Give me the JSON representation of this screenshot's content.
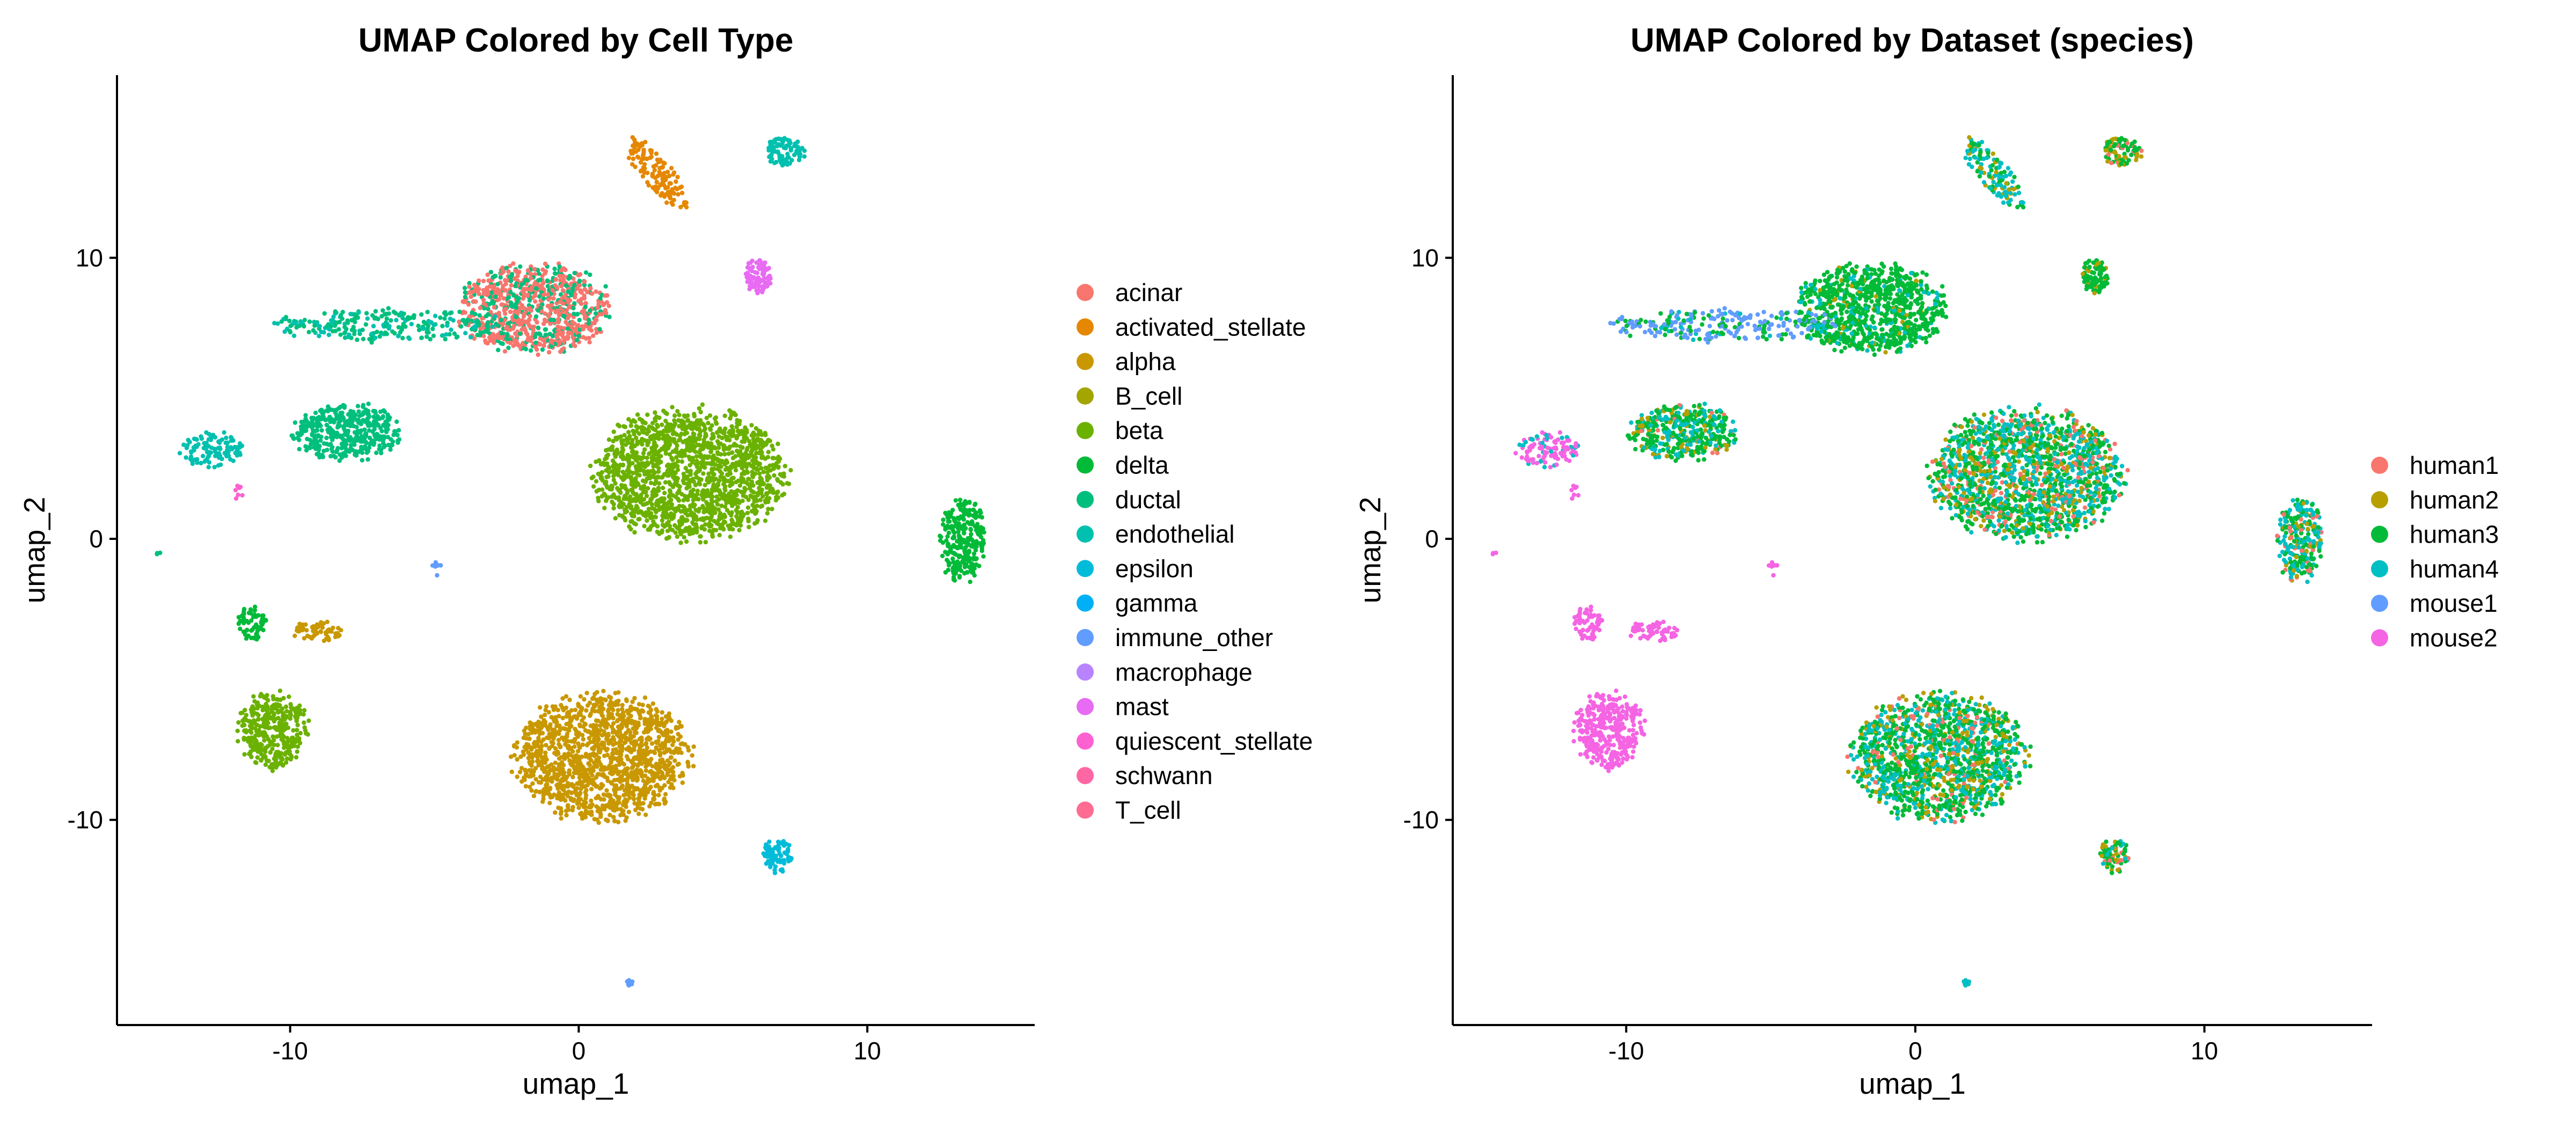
{
  "chart_data": [
    {
      "type": "scatter",
      "title": "UMAP Colored by Cell Type",
      "xlabel": "umap_1",
      "ylabel": "umap_2",
      "xlim": [
        -16.0,
        15.8
      ],
      "ylim": [
        -17.3,
        16.5
      ],
      "xticks": [
        -10,
        0,
        10
      ],
      "xtick_labels": [
        "-10",
        "0",
        "10"
      ],
      "yticks": [
        -10,
        0,
        10
      ],
      "ytick_labels": [
        "-10",
        "0",
        "10"
      ],
      "grid": false,
      "legend_position": "right",
      "legend": [
        {
          "name": "acinar",
          "color": "#F8766D"
        },
        {
          "name": "activated_stellate",
          "color": "#E58700"
        },
        {
          "name": "alpha",
          "color": "#C99800"
        },
        {
          "name": "B_cell",
          "color": "#A3A500"
        },
        {
          "name": "beta",
          "color": "#6BB100"
        },
        {
          "name": "delta",
          "color": "#00BA38"
        },
        {
          "name": "ductal",
          "color": "#00BF7D"
        },
        {
          "name": "endothelial",
          "color": "#00C0AF"
        },
        {
          "name": "epsilon",
          "color": "#00BCD8"
        },
        {
          "name": "gamma",
          "color": "#00B0F6"
        },
        {
          "name": "immune_other",
          "color": "#619CFF"
        },
        {
          "name": "macrophage",
          "color": "#B983FF"
        },
        {
          "name": "mast",
          "color": "#E76BF3"
        },
        {
          "name": "quiescent_stellate",
          "color": "#FD61D1"
        },
        {
          "name": "schwann",
          "color": "#FF67A4"
        },
        {
          "name": "T_cell",
          "color": "#FF6C91"
        }
      ],
      "clusters": [
        {
          "label": "acinar",
          "center": [
            -1.5,
            8.2
          ],
          "radius": [
            2.6,
            1.6
          ],
          "n": 900,
          "color": "#F8766D",
          "mix": [
            [
              "#00BF7D",
              0.3
            ]
          ]
        },
        {
          "label": "ductal",
          "center": [
            -8.0,
            3.8
          ],
          "radius": [
            1.9,
            1.0
          ],
          "n": 420,
          "color": "#00BF7D"
        },
        {
          "label": "ductal",
          "center": [
            -6.5,
            7.6
          ],
          "radius": [
            4.0,
            0.6
          ],
          "n": 260,
          "color": "#00BF7D",
          "mix": [
            [
              "#00C0AF",
              0.3
            ]
          ]
        },
        {
          "label": "endothelial",
          "center": [
            -12.7,
            3.2
          ],
          "radius": [
            1.1,
            0.6
          ],
          "n": 110,
          "color": "#00C0AF"
        },
        {
          "label": "endothelial",
          "center": [
            7.1,
            13.8
          ],
          "radius": [
            0.7,
            0.5
          ],
          "n": 90,
          "color": "#00C0AF"
        },
        {
          "label": "activated_stellate",
          "center": [
            2.7,
            13.0
          ],
          "radius": [
            1.6,
            0.5
          ],
          "n": 130,
          "color": "#E58700",
          "rotate": -52
        },
        {
          "label": "quiescent_stellate",
          "center": [
            6.2,
            9.4
          ],
          "radius": [
            0.45,
            0.65
          ],
          "n": 90,
          "color": "#E76BF3"
        },
        {
          "label": "beta",
          "center": [
            3.8,
            2.3
          ],
          "radius": [
            3.3,
            2.3
          ],
          "n": 1600,
          "color": "#6BB100"
        },
        {
          "label": "beta",
          "center": [
            -10.6,
            -6.8
          ],
          "radius": [
            1.2,
            1.4
          ],
          "n": 350,
          "color": "#6BB100"
        },
        {
          "label": "delta",
          "center": [
            13.3,
            0.0
          ],
          "radius": [
            0.8,
            1.5
          ],
          "n": 260,
          "color": "#00BA38"
        },
        {
          "label": "delta",
          "center": [
            -11.3,
            -3.0
          ],
          "radius": [
            0.5,
            0.6
          ],
          "n": 60,
          "color": "#00BA38"
        },
        {
          "label": "alpha",
          "center": [
            0.8,
            -7.8
          ],
          "radius": [
            3.0,
            2.2
          ],
          "n": 1400,
          "color": "#C99800"
        },
        {
          "label": "alpha",
          "center": [
            -9.0,
            -3.3
          ],
          "radius": [
            0.9,
            0.35
          ],
          "n": 60,
          "color": "#C99800"
        },
        {
          "label": "gamma",
          "center": [
            6.9,
            -11.3
          ],
          "radius": [
            0.55,
            0.6
          ],
          "n": 80,
          "color": "#00BCD8"
        },
        {
          "label": "macrophage",
          "center": [
            1.8,
            -15.8
          ],
          "radius": [
            0.15,
            0.15
          ],
          "n": 8,
          "color": "#619CFF"
        },
        {
          "label": "macrophage",
          "center": [
            -4.9,
            -1.1
          ],
          "radius": [
            0.2,
            0.3
          ],
          "n": 8,
          "color": "#619CFF"
        },
        {
          "label": "schwann",
          "center": [
            -11.8,
            1.6
          ],
          "radius": [
            0.15,
            0.3
          ],
          "n": 8,
          "color": "#FD61D1"
        },
        {
          "label": "ductal",
          "center": [
            -14.6,
            -0.5
          ],
          "radius": [
            0.1,
            0.1
          ],
          "n": 3,
          "color": "#00BF7D"
        }
      ]
    },
    {
      "type": "scatter",
      "title": "UMAP Colored by Dataset (species)",
      "xlabel": "umap_1",
      "ylabel": "umap_2",
      "xlim": [
        -16.0,
        15.8
      ],
      "ylim": [
        -17.3,
        16.5
      ],
      "xticks": [
        -10,
        0,
        10
      ],
      "xtick_labels": [
        "-10",
        "0",
        "10"
      ],
      "yticks": [
        -10,
        0,
        10
      ],
      "ytick_labels": [
        "-10",
        "0",
        "10"
      ],
      "grid": false,
      "legend_position": "right",
      "legend": [
        {
          "name": "human1",
          "color": "#F8766D"
        },
        {
          "name": "human2",
          "color": "#B79F00"
        },
        {
          "name": "human3",
          "color": "#00BA38"
        },
        {
          "name": "human4",
          "color": "#00BFC4"
        },
        {
          "name": "mouse1",
          "color": "#619CFF"
        },
        {
          "name": "mouse2",
          "color": "#F564E3"
        }
      ],
      "clusters": [
        {
          "label": "mixed",
          "center": [
            -1.5,
            8.2
          ],
          "radius": [
            2.6,
            1.6
          ],
          "n": 900,
          "color": "#00BA38",
          "mix": [
            [
              "#00BFC4",
              0.12
            ],
            [
              "#B79F00",
              0.06
            ]
          ]
        },
        {
          "label": "mixed",
          "center": [
            -8.0,
            3.8
          ],
          "radius": [
            1.9,
            1.0
          ],
          "n": 420,
          "color": "#00BA38",
          "mix": [
            [
              "#00BFC4",
              0.3
            ],
            [
              "#B79F00",
              0.15
            ],
            [
              "#F8766D",
              0.05
            ]
          ]
        },
        {
          "label": "mouse",
          "center": [
            -6.5,
            7.6
          ],
          "radius": [
            4.0,
            0.6
          ],
          "n": 260,
          "color": "#619CFF",
          "mix": [
            [
              "#00BA38",
              0.25
            ],
            [
              "#00BFC4",
              0.1
            ]
          ]
        },
        {
          "label": "mouse",
          "center": [
            -12.7,
            3.2
          ],
          "radius": [
            1.1,
            0.6
          ],
          "n": 110,
          "color": "#F564E3",
          "mix": [
            [
              "#00BFC4",
              0.2
            ]
          ]
        },
        {
          "label": "mixed",
          "center": [
            7.1,
            13.8
          ],
          "radius": [
            0.7,
            0.5
          ],
          "n": 90,
          "color": "#00BA38",
          "mix": [
            [
              "#B79F00",
              0.3
            ],
            [
              "#F8766D",
              0.15
            ]
          ]
        },
        {
          "label": "mixed",
          "center": [
            2.7,
            13.0
          ],
          "radius": [
            1.6,
            0.5
          ],
          "n": 130,
          "color": "#00BFC4",
          "mix": [
            [
              "#00BA38",
              0.35
            ],
            [
              "#B79F00",
              0.15
            ]
          ],
          "rotate": -52
        },
        {
          "label": "mixed",
          "center": [
            6.2,
            9.4
          ],
          "radius": [
            0.45,
            0.65
          ],
          "n": 90,
          "color": "#00BA38",
          "mix": [
            [
              "#B79F00",
              0.2
            ]
          ]
        },
        {
          "label": "mixed",
          "center": [
            3.8,
            2.3
          ],
          "radius": [
            3.3,
            2.3
          ],
          "n": 1600,
          "color": "#00BA38",
          "mix": [
            [
              "#00BFC4",
              0.35
            ],
            [
              "#B79F00",
              0.15
            ],
            [
              "#F8766D",
              0.1
            ]
          ]
        },
        {
          "label": "mouse",
          "center": [
            -10.6,
            -6.8
          ],
          "radius": [
            1.2,
            1.4
          ],
          "n": 350,
          "color": "#F564E3"
        },
        {
          "label": "mixed",
          "center": [
            13.3,
            0.0
          ],
          "radius": [
            0.8,
            1.5
          ],
          "n": 260,
          "color": "#00BFC4",
          "mix": [
            [
              "#00BA38",
              0.3
            ],
            [
              "#B79F00",
              0.15
            ],
            [
              "#F8766D",
              0.1
            ]
          ]
        },
        {
          "label": "mouse",
          "center": [
            -11.3,
            -3.0
          ],
          "radius": [
            0.5,
            0.6
          ],
          "n": 60,
          "color": "#F564E3"
        },
        {
          "label": "mixed",
          "center": [
            0.8,
            -7.8
          ],
          "radius": [
            3.0,
            2.2
          ],
          "n": 1400,
          "color": "#00BA38",
          "mix": [
            [
              "#00BFC4",
              0.3
            ],
            [
              "#B79F00",
              0.15
            ],
            [
              "#F8766D",
              0.08
            ]
          ]
        },
        {
          "label": "mouse",
          "center": [
            -9.0,
            -3.3
          ],
          "radius": [
            0.9,
            0.35
          ],
          "n": 60,
          "color": "#F564E3"
        },
        {
          "label": "mixed",
          "center": [
            6.9,
            -11.3
          ],
          "radius": [
            0.55,
            0.6
          ],
          "n": 80,
          "color": "#00BA38",
          "mix": [
            [
              "#B79F00",
              0.3
            ],
            [
              "#F8766D",
              0.15
            ],
            [
              "#00BFC4",
              0.1
            ]
          ]
        },
        {
          "label": "mixed",
          "center": [
            1.8,
            -15.8
          ],
          "radius": [
            0.15,
            0.15
          ],
          "n": 8,
          "color": "#00BFC4"
        },
        {
          "label": "mouse",
          "center": [
            -4.9,
            -1.1
          ],
          "radius": [
            0.2,
            0.3
          ],
          "n": 8,
          "color": "#F564E3"
        },
        {
          "label": "mouse",
          "center": [
            -11.8,
            1.6
          ],
          "radius": [
            0.15,
            0.3
          ],
          "n": 8,
          "color": "#F564E3"
        },
        {
          "label": "mouse",
          "center": [
            -14.6,
            -0.5
          ],
          "radius": [
            0.1,
            0.1
          ],
          "n": 3,
          "color": "#F564E3"
        }
      ]
    }
  ]
}
